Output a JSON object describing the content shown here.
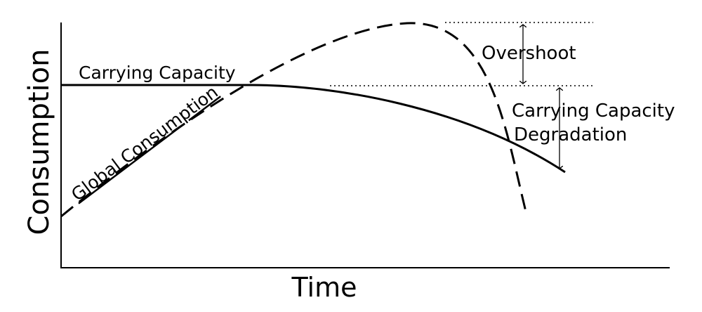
{
  "diagram": {
    "ylabel": "Consumption",
    "xlabel": "Time",
    "labels": {
      "carrying_capacity": "Carrying Capacity",
      "global_consumption": "Global Consumption",
      "overshoot": "Overshoot",
      "degradation_line1": "Carrying Capacity",
      "degradation_line2": "Degradation"
    },
    "line_color": "#000000",
    "background": "#ffffff"
  }
}
